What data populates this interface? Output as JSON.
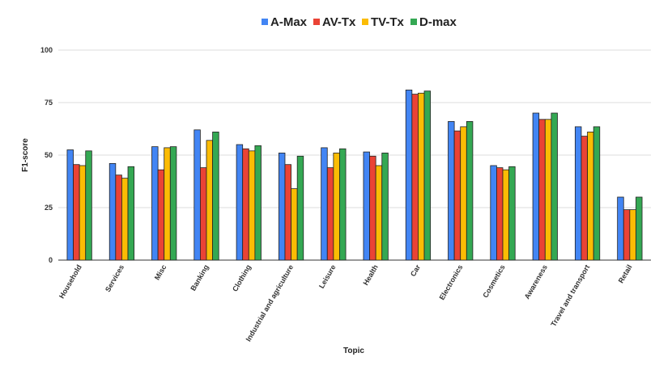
{
  "chart_data": {
    "type": "bar",
    "xlabel": "Topic",
    "ylabel": "F1-score",
    "ylim": [
      0,
      100
    ],
    "yticks": [
      0,
      25,
      50,
      75,
      100
    ],
    "grid": true,
    "legend_position": "top-center",
    "categories": [
      "Household",
      "Services",
      "Misc",
      "Banking",
      "Clothing",
      "Industrial and agriculture",
      "Leisure",
      "Health",
      "Car",
      "Electronics",
      "Cosmetics",
      "Awareness",
      "Travel and transport",
      "Retail"
    ],
    "series": [
      {
        "name": "A-Max",
        "color": "#4285F4",
        "values": [
          52.5,
          46,
          54,
          62,
          55,
          51,
          53.5,
          51.5,
          81,
          66,
          45,
          70,
          63.5,
          30
        ]
      },
      {
        "name": "AV-Tx",
        "color": "#EA4335",
        "values": [
          45.5,
          40.5,
          43,
          44,
          53,
          45.5,
          44,
          49.5,
          79,
          61.5,
          44,
          67,
          59,
          24
        ]
      },
      {
        "name": "TV-Tx",
        "color": "#FBBC04",
        "values": [
          45,
          39,
          53.5,
          57,
          52,
          34,
          51,
          45,
          79.5,
          63.5,
          43,
          67,
          61,
          24
        ]
      },
      {
        "name": "D-max",
        "color": "#34A853",
        "values": [
          52,
          44.5,
          54,
          61,
          54.5,
          49.5,
          53,
          51,
          80.5,
          66,
          44.5,
          70,
          63.5,
          30
        ]
      }
    ]
  }
}
